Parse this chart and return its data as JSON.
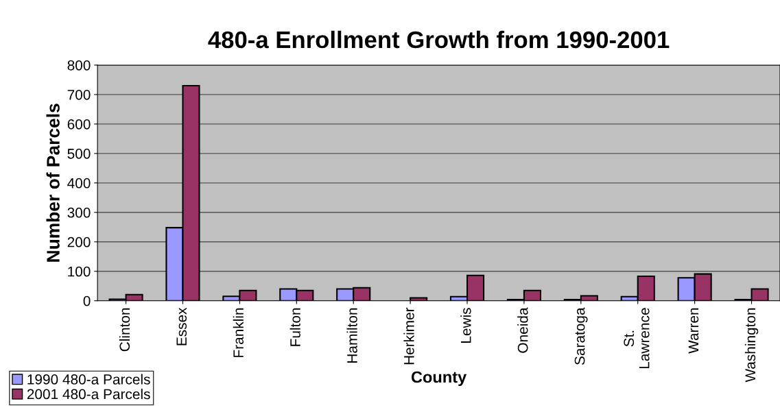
{
  "chart_data": {
    "type": "bar",
    "title": "480-a Enrollment Growth from 1990-2001",
    "xlabel": "County",
    "ylabel": "Number of Parcels",
    "categories": [
      "Clinton",
      "Essex",
      "Franklin",
      "Fulton",
      "Hamilton",
      "Herkimer",
      "Lewis",
      "Oneida",
      "Saratoga",
      "St.\nLawrence",
      "Warren",
      "Washington"
    ],
    "series": [
      {
        "name": "1990 480-a Parcels",
        "color": "#9999ff",
        "values": [
          5,
          248,
          15,
          40,
          40,
          null,
          14,
          4,
          4,
          14,
          78,
          4
        ]
      },
      {
        "name": "2001 480-a Parcels",
        "color": "#993366",
        "values": [
          21,
          730,
          35,
          35,
          44,
          10,
          86,
          35,
          17,
          83,
          91,
          40
        ]
      }
    ],
    "ylim": [
      0,
      800
    ],
    "yticks": [
      0,
      100,
      200,
      300,
      400,
      500,
      600,
      700,
      800
    ],
    "grid": "y",
    "legend": "bottom left"
  }
}
